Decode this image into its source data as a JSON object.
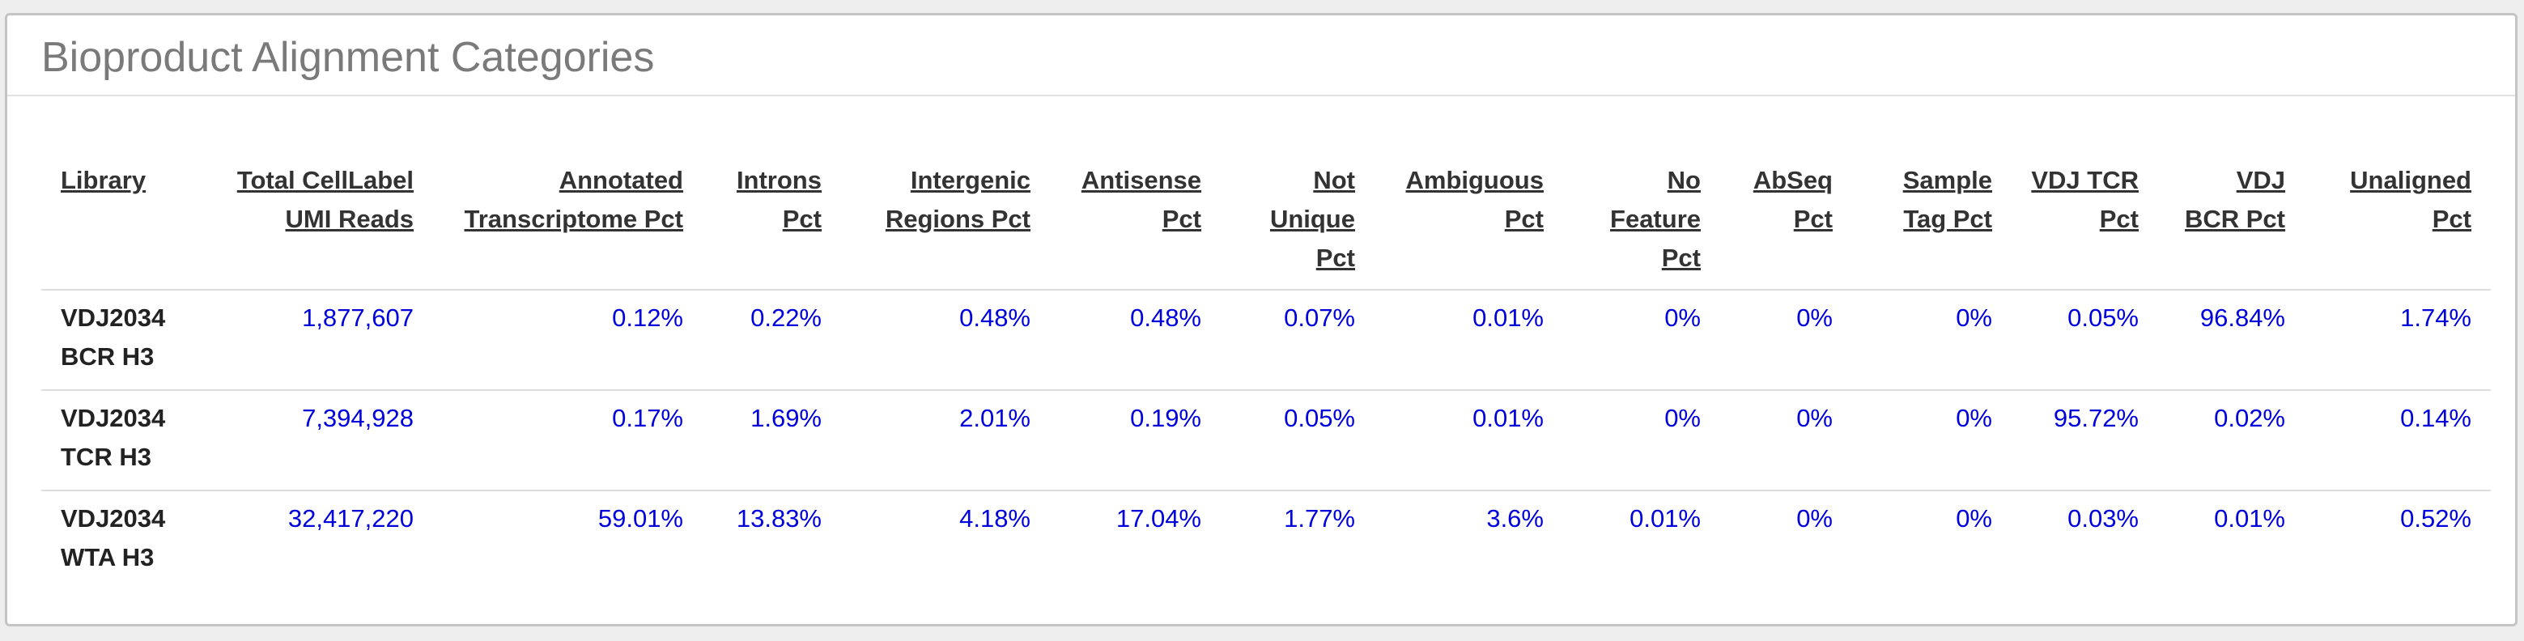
{
  "panel": {
    "title": "Bioproduct Alignment Categories"
  },
  "table": {
    "headers": [
      "Library",
      "Total CellLabel UMI Reads",
      "Annotated Transcriptome Pct",
      "Introns Pct",
      "Intergenic Regions Pct",
      "Antisense Pct",
      "Not Unique Pct",
      "Ambiguous Pct",
      "No Feature Pct",
      "AbSeq Pct",
      "Sample Tag Pct",
      "VDJ TCR Pct",
      "VDJ BCR Pct",
      "Unaligned Pct"
    ],
    "rows": [
      [
        "VDJ2034 BCR H3",
        "1,877,607",
        "0.12%",
        "0.22%",
        "0.48%",
        "0.48%",
        "0.07%",
        "0.01%",
        "0%",
        "0%",
        "0%",
        "0.05%",
        "96.84%",
        "1.74%"
      ],
      [
        "VDJ2034 TCR H3",
        "7,394,928",
        "0.17%",
        "1.69%",
        "2.01%",
        "0.19%",
        "0.05%",
        "0.01%",
        "0%",
        "0%",
        "0%",
        "95.72%",
        "0.02%",
        "0.14%"
      ],
      [
        "VDJ2034 WTA H3",
        "32,417,220",
        "59.01%",
        "13.83%",
        "4.18%",
        "17.04%",
        "1.77%",
        "3.6%",
        "0.01%",
        "0%",
        "0%",
        "0.03%",
        "0.01%",
        "0.52%"
      ]
    ]
  },
  "colors": {
    "value_text": "#0000dd",
    "header_text": "#333333",
    "title_text": "#7a7a7a"
  }
}
